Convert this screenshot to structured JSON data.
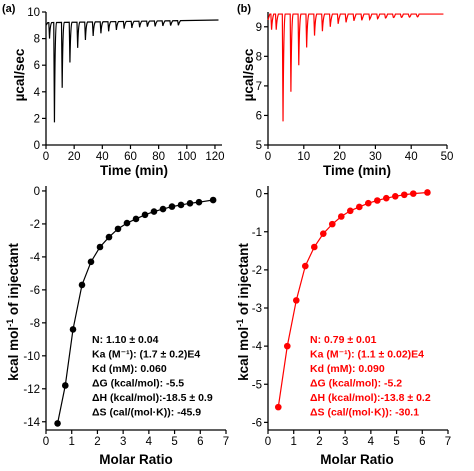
{
  "panels": [
    {
      "label": "(a)",
      "color": "#000000"
    },
    {
      "label": "(b)",
      "color": "#ff0000"
    }
  ],
  "chart_data": [
    {
      "id": "a-raw",
      "type": "line",
      "xlabel": "Time (min)",
      "ylabel": "µcal/sec",
      "xlim": [
        0,
        125
      ],
      "ylim": [
        0,
        10
      ],
      "xticks": [
        0,
        20,
        40,
        60,
        80,
        100,
        120
      ],
      "yticks": [
        0,
        2,
        4,
        6,
        8,
        10
      ],
      "color": "#000000",
      "baseline": [
        [
          0,
          9.2
        ],
        [
          125,
          9.4
        ]
      ],
      "injections": [
        {
          "x": 2,
          "min": 8.0
        },
        {
          "x": 5.5,
          "min": 1.7
        },
        {
          "x": 11,
          "min": 4.3
        },
        {
          "x": 16.5,
          "min": 6.2
        },
        {
          "x": 22,
          "min": 7.3
        },
        {
          "x": 27.5,
          "min": 7.9
        },
        {
          "x": 33,
          "min": 8.2
        },
        {
          "x": 38.5,
          "min": 8.4
        },
        {
          "x": 44,
          "min": 8.55
        },
        {
          "x": 49.5,
          "min": 8.65
        },
        {
          "x": 55,
          "min": 8.75
        },
        {
          "x": 60.5,
          "min": 8.8
        },
        {
          "x": 66,
          "min": 8.85
        },
        {
          "x": 71.5,
          "min": 8.9
        },
        {
          "x": 77,
          "min": 8.92
        },
        {
          "x": 82.5,
          "min": 8.95
        },
        {
          "x": 88,
          "min": 8.98
        },
        {
          "x": 93.5,
          "min": 9.0
        }
      ]
    },
    {
      "id": "b-raw",
      "type": "line",
      "xlabel": "Time (min)",
      "ylabel": "µcal/sec",
      "xlim": [
        0,
        50
      ],
      "ylim": [
        5,
        9.5
      ],
      "xticks": [
        0,
        10,
        20,
        30,
        40,
        50
      ],
      "yticks": [
        5,
        6,
        7,
        8,
        9
      ],
      "color": "#ff0000",
      "baseline": [
        [
          0,
          9.43
        ],
        [
          50,
          9.43
        ]
      ],
      "injections": [
        {
          "x": 0.8,
          "min": 8.9
        },
        {
          "x": 2.1,
          "min": 8.9
        },
        {
          "x": 4.0,
          "min": 5.8
        },
        {
          "x": 6.2,
          "min": 6.8
        },
        {
          "x": 8.4,
          "min": 7.7
        },
        {
          "x": 10.6,
          "min": 8.3
        },
        {
          "x": 12.8,
          "min": 8.7
        },
        {
          "x": 15.0,
          "min": 8.85
        },
        {
          "x": 17.2,
          "min": 9.0
        },
        {
          "x": 19.4,
          "min": 9.1
        },
        {
          "x": 21.6,
          "min": 9.15
        },
        {
          "x": 23.8,
          "min": 9.2
        },
        {
          "x": 26.0,
          "min": 9.22
        },
        {
          "x": 28.2,
          "min": 9.25
        },
        {
          "x": 30.4,
          "min": 9.27
        },
        {
          "x": 32.6,
          "min": 9.3
        },
        {
          "x": 34.8,
          "min": 9.32
        },
        {
          "x": 37.0,
          "min": 9.33
        },
        {
          "x": 39.2,
          "min": 9.35
        },
        {
          "x": 41.4,
          "min": 9.37
        }
      ]
    },
    {
      "id": "a-fit",
      "type": "scatter",
      "xlabel": "Molar Ratio",
      "ylabel": "kcal mol-1 of injectant",
      "xlim": [
        0,
        7
      ],
      "ylim": [
        -14.5,
        0.3
      ],
      "xticks": [
        0,
        1,
        2,
        3,
        4,
        5,
        6,
        7
      ],
      "yticks": [
        0,
        -2,
        -4,
        -6,
        -8,
        -10,
        -12,
        -14
      ],
      "color": "#000000",
      "x": [
        0.45,
        0.75,
        1.05,
        1.4,
        1.75,
        2.1,
        2.45,
        2.8,
        3.15,
        3.5,
        3.85,
        4.2,
        4.55,
        4.9,
        5.25,
        5.6,
        5.95,
        6.5
      ],
      "y": [
        -14.1,
        -11.8,
        -8.4,
        -5.7,
        -4.3,
        -3.4,
        -2.8,
        -2.3,
        -1.95,
        -1.7,
        -1.45,
        -1.25,
        -1.1,
        -0.95,
        -0.85,
        -0.75,
        -0.68,
        -0.55
      ],
      "annotations": [
        "N: 1.10 ± 0.04",
        "Ka (M⁻¹): (1.7 ± 0.2)E4",
        "Kd (mM): 0.060",
        "ΔG (kcal/mol): -5.5",
        "ΔH (kcal/mol):-18.5 ± 0.9",
        "ΔS (cal/(mol·K)): -45.9"
      ]
    },
    {
      "id": "b-fit",
      "type": "scatter",
      "xlabel": "Molar Ratio",
      "ylabel": "kcal mol-1 of injectant",
      "xlim": [
        0,
        7
      ],
      "ylim": [
        -6.2,
        0.2
      ],
      "xticks": [
        0,
        1,
        2,
        3,
        4,
        5,
        6,
        7
      ],
      "yticks": [
        0,
        -1,
        -2,
        -3,
        -4,
        -5,
        -6
      ],
      "color": "#ff0000",
      "x": [
        0.4,
        0.75,
        1.1,
        1.45,
        1.8,
        2.15,
        2.5,
        2.85,
        3.2,
        3.55,
        3.9,
        4.25,
        4.6,
        4.95,
        5.3,
        5.65,
        6.2
      ],
      "y": [
        -5.6,
        -4.0,
        -2.8,
        -1.9,
        -1.4,
        -1.05,
        -0.8,
        -0.6,
        -0.45,
        -0.35,
        -0.25,
        -0.18,
        -0.12,
        -0.07,
        -0.03,
        0.0,
        0.03
      ],
      "annotations": [
        "N: 0.79 ± 0.01",
        "Ka (M⁻¹): (1.1 ± 0.02)E4",
        "Kd (mM): 0.090",
        "ΔG (kcal/mol): -5.2",
        "ΔH (kcal/mol):-13.8 ± 0.2",
        "ΔS (cal/(mol·K)): -30.1"
      ]
    }
  ]
}
